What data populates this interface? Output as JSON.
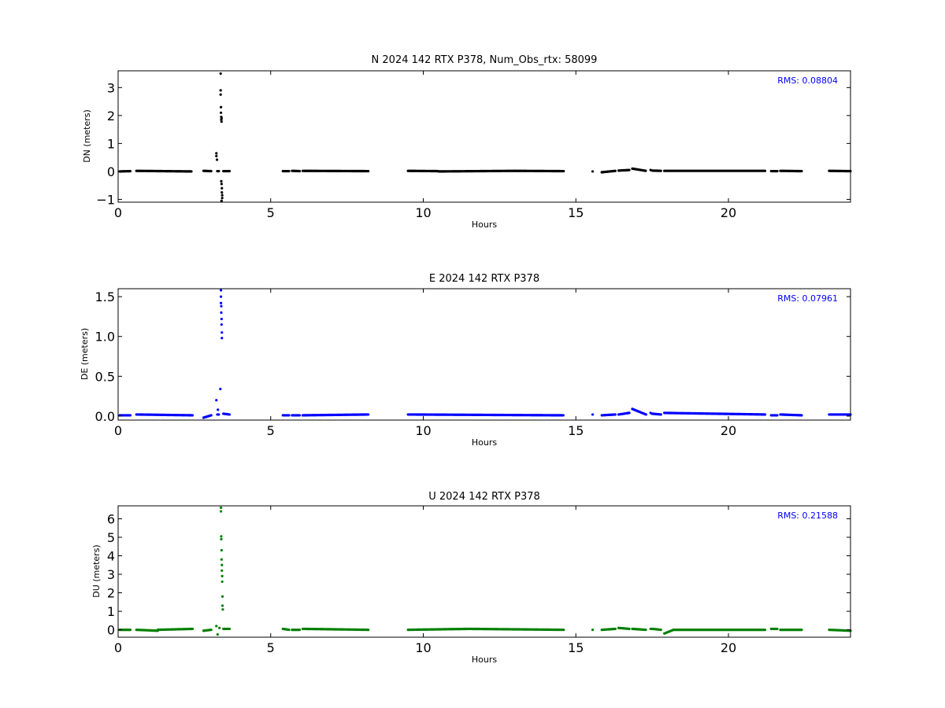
{
  "chart_data": [
    {
      "type": "scatter",
      "title": "N 2024 142 RTX  P378, Num_Obs_rtx: 58099",
      "xlabel": "Hours",
      "ylabel": "DN (meters)",
      "xlim": [
        0,
        24
      ],
      "ylim": [
        -1.1,
        3.6
      ],
      "xticks": [
        0,
        5,
        10,
        15,
        20
      ],
      "yticks": [
        -1,
        0,
        1,
        2,
        3
      ],
      "grid": false,
      "color": "#000000",
      "annotation": {
        "text": "RMS:  0.08804",
        "color": "#0000ff",
        "position": "top-right"
      },
      "segments": [
        {
          "x": [
            0.05,
            0.4
          ],
          "y": [
            0.0,
            0.01
          ]
        },
        {
          "x": [
            0.6,
            2.4
          ],
          "y": [
            0.02,
            0.0
          ]
        },
        {
          "x": [
            2.8,
            3.05
          ],
          "y": [
            0.02,
            0.01
          ]
        },
        {
          "x": [
            3.25,
            3.3
          ],
          "y": [
            0.01,
            0.01
          ]
        },
        {
          "x": [
            3.45,
            3.65
          ],
          "y": [
            0.01,
            0.01
          ]
        },
        {
          "x": [
            5.4,
            5.6
          ],
          "y": [
            0.01,
            0.01
          ]
        },
        {
          "x": [
            5.7,
            5.95
          ],
          "y": [
            0.02,
            0.01
          ]
        },
        {
          "x": [
            6.05,
            8.2
          ],
          "y": [
            0.02,
            0.01
          ]
        },
        {
          "x": [
            9.5,
            10.5
          ],
          "y": [
            0.02,
            0.01
          ]
        },
        {
          "x": [
            10.5,
            13.0
          ],
          "y": [
            0.0,
            0.02
          ]
        },
        {
          "x": [
            13.0,
            14.6
          ],
          "y": [
            0.02,
            0.01
          ]
        },
        {
          "x": [
            15.85,
            16.3
          ],
          "y": [
            -0.03,
            0.02
          ]
        },
        {
          "x": [
            16.4,
            16.75
          ],
          "y": [
            0.03,
            0.05
          ]
        },
        {
          "x": [
            16.85,
            17.3
          ],
          "y": [
            0.1,
            0.02
          ]
        },
        {
          "x": [
            17.5,
            17.8
          ],
          "y": [
            0.03,
            0.02
          ]
        },
        {
          "x": [
            17.9,
            21.2
          ],
          "y": [
            0.02,
            0.02
          ]
        },
        {
          "x": [
            21.4,
            21.6
          ],
          "y": [
            0.01,
            0.01
          ]
        },
        {
          "x": [
            21.7,
            22.4
          ],
          "y": [
            0.02,
            0.01
          ]
        },
        {
          "x": [
            23.3,
            24.0
          ],
          "y": [
            0.02,
            0.01
          ]
        }
      ],
      "points": [
        {
          "x": 15.55,
          "y": 0.0
        },
        {
          "x": 17.45,
          "y": 0.05
        },
        {
          "x": 3.22,
          "y": 0.65
        },
        {
          "x": 3.22,
          "y": 0.55
        },
        {
          "x": 3.24,
          "y": 0.42
        },
        {
          "x": 3.36,
          "y": 3.5
        },
        {
          "x": 3.36,
          "y": 2.9
        },
        {
          "x": 3.36,
          "y": 2.75
        },
        {
          "x": 3.37,
          "y": 2.3
        },
        {
          "x": 3.37,
          "y": 2.1
        },
        {
          "x": 3.38,
          "y": 1.95
        },
        {
          "x": 3.38,
          "y": 1.85
        },
        {
          "x": 3.39,
          "y": 1.78
        },
        {
          "x": 3.39,
          "y": 1.9
        },
        {
          "x": 3.38,
          "y": -0.35
        },
        {
          "x": 3.39,
          "y": -0.45
        },
        {
          "x": 3.4,
          "y": -0.6
        },
        {
          "x": 3.4,
          "y": -0.75
        },
        {
          "x": 3.41,
          "y": -0.85
        },
        {
          "x": 3.41,
          "y": -0.95
        },
        {
          "x": 3.39,
          "y": -1.05
        }
      ]
    },
    {
      "type": "scatter",
      "title": "E 2024 142 RTX  P378",
      "xlabel": "Hours",
      "ylabel": "DE (meters)",
      "xlim": [
        0,
        24
      ],
      "ylim": [
        -0.05,
        1.6
      ],
      "xticks": [
        0,
        5,
        10,
        15,
        20
      ],
      "yticks": [
        0.0,
        0.5,
        1.0,
        1.5
      ],
      "ytick_labels": [
        "0.0",
        "0.5",
        "1.0",
        "1.5"
      ],
      "grid": false,
      "color": "#0000ff",
      "annotation": {
        "text": "RMS:  0.07961",
        "color": "#0000ff",
        "position": "top-right"
      },
      "segments": [
        {
          "x": [
            0.05,
            0.4
          ],
          "y": [
            0.01,
            0.01
          ]
        },
        {
          "x": [
            0.6,
            2.45
          ],
          "y": [
            0.02,
            0.01
          ]
        },
        {
          "x": [
            2.8,
            3.05
          ],
          "y": [
            -0.02,
            0.01
          ]
        },
        {
          "x": [
            3.25,
            3.3
          ],
          "y": [
            0.02,
            0.02
          ]
        },
        {
          "x": [
            3.45,
            3.65
          ],
          "y": [
            0.03,
            0.02
          ]
        },
        {
          "x": [
            5.4,
            5.6
          ],
          "y": [
            0.01,
            0.01
          ]
        },
        {
          "x": [
            5.7,
            5.95
          ],
          "y": [
            0.01,
            0.01
          ]
        },
        {
          "x": [
            6.05,
            8.2
          ],
          "y": [
            0.01,
            0.02
          ]
        },
        {
          "x": [
            9.5,
            14.6
          ],
          "y": [
            0.02,
            0.01
          ]
        },
        {
          "x": [
            15.85,
            16.3
          ],
          "y": [
            0.01,
            0.02
          ]
        },
        {
          "x": [
            16.4,
            16.75
          ],
          "y": [
            0.02,
            0.04
          ]
        },
        {
          "x": [
            16.85,
            17.3
          ],
          "y": [
            0.09,
            0.02
          ]
        },
        {
          "x": [
            17.5,
            17.8
          ],
          "y": [
            0.03,
            0.02
          ]
        },
        {
          "x": [
            17.9,
            21.2
          ],
          "y": [
            0.04,
            0.02
          ]
        },
        {
          "x": [
            21.4,
            21.6
          ],
          "y": [
            0.01,
            0.01
          ]
        },
        {
          "x": [
            21.7,
            22.4
          ],
          "y": [
            0.02,
            0.01
          ]
        },
        {
          "x": [
            23.3,
            24.0
          ],
          "y": [
            0.02,
            0.02
          ]
        }
      ],
      "points": [
        {
          "x": 15.55,
          "y": 0.02
        },
        {
          "x": 17.45,
          "y": 0.04
        },
        {
          "x": 3.22,
          "y": 0.2
        },
        {
          "x": 3.27,
          "y": 0.08
        },
        {
          "x": 3.35,
          "y": 0.34
        },
        {
          "x": 3.37,
          "y": 1.58
        },
        {
          "x": 3.37,
          "y": 1.5
        },
        {
          "x": 3.37,
          "y": 1.42
        },
        {
          "x": 3.38,
          "y": 1.38
        },
        {
          "x": 3.38,
          "y": 1.3
        },
        {
          "x": 3.39,
          "y": 1.22
        },
        {
          "x": 3.39,
          "y": 1.15
        },
        {
          "x": 3.4,
          "y": 1.05
        },
        {
          "x": 3.4,
          "y": 0.98
        }
      ]
    },
    {
      "type": "scatter",
      "title": "U 2024 142 RTX  P378",
      "xlabel": "Hours",
      "ylabel": "DU (meters)",
      "xlim": [
        0,
        24
      ],
      "ylim": [
        -0.4,
        6.7
      ],
      "xticks": [
        0,
        5,
        10,
        15,
        20
      ],
      "yticks": [
        0,
        1,
        2,
        3,
        4,
        5,
        6
      ],
      "grid": false,
      "color": "#008000",
      "annotation": {
        "text": "RMS:  0.21588",
        "color": "#0000ff",
        "position": "top-right"
      },
      "segments": [
        {
          "x": [
            0.05,
            0.4
          ],
          "y": [
            0.0,
            0.0
          ]
        },
        {
          "x": [
            0.6,
            1.3
          ],
          "y": [
            0.0,
            -0.05
          ]
        },
        {
          "x": [
            1.3,
            2.45
          ],
          "y": [
            0.0,
            0.05
          ]
        },
        {
          "x": [
            2.8,
            3.05
          ],
          "y": [
            -0.05,
            0.0
          ]
        },
        {
          "x": [
            3.45,
            3.65
          ],
          "y": [
            0.05,
            0.05
          ]
        },
        {
          "x": [
            5.4,
            5.6
          ],
          "y": [
            0.05,
            0.0
          ]
        },
        {
          "x": [
            5.7,
            5.95
          ],
          "y": [
            0.0,
            0.0
          ]
        },
        {
          "x": [
            6.05,
            8.2
          ],
          "y": [
            0.05,
            0.0
          ]
        },
        {
          "x": [
            9.5,
            11.5
          ],
          "y": [
            0.0,
            0.05
          ]
        },
        {
          "x": [
            11.5,
            14.6
          ],
          "y": [
            0.05,
            0.0
          ]
        },
        {
          "x": [
            15.85,
            16.3
          ],
          "y": [
            0.0,
            0.05
          ]
        },
        {
          "x": [
            16.4,
            16.75
          ],
          "y": [
            0.1,
            0.05
          ]
        },
        {
          "x": [
            16.85,
            17.3
          ],
          "y": [
            0.05,
            0.0
          ]
        },
        {
          "x": [
            17.5,
            17.8
          ],
          "y": [
            0.05,
            0.0
          ]
        },
        {
          "x": [
            17.9,
            18.2
          ],
          "y": [
            -0.2,
            0.0
          ]
        },
        {
          "x": [
            18.2,
            21.2
          ],
          "y": [
            0.0,
            0.0
          ]
        },
        {
          "x": [
            21.4,
            21.6
          ],
          "y": [
            0.05,
            0.05
          ]
        },
        {
          "x": [
            21.7,
            22.4
          ],
          "y": [
            0.0,
            0.0
          ]
        },
        {
          "x": [
            23.3,
            24.0
          ],
          "y": [
            0.0,
            -0.05
          ]
        }
      ],
      "points": [
        {
          "x": 15.55,
          "y": 0.0
        },
        {
          "x": 17.45,
          "y": 0.05
        },
        {
          "x": 3.22,
          "y": 0.2
        },
        {
          "x": 3.26,
          "y": -0.25
        },
        {
          "x": 3.32,
          "y": 0.1
        },
        {
          "x": 3.37,
          "y": 6.6
        },
        {
          "x": 3.37,
          "y": 6.4
        },
        {
          "x": 3.38,
          "y": 5.05
        },
        {
          "x": 3.38,
          "y": 4.9
        },
        {
          "x": 3.39,
          "y": 4.3
        },
        {
          "x": 3.39,
          "y": 3.8
        },
        {
          "x": 3.4,
          "y": 3.5
        },
        {
          "x": 3.4,
          "y": 3.2
        },
        {
          "x": 3.41,
          "y": 2.9
        },
        {
          "x": 3.41,
          "y": 2.6
        },
        {
          "x": 3.42,
          "y": 1.8
        },
        {
          "x": 3.42,
          "y": 1.3
        },
        {
          "x": 3.43,
          "y": 1.1
        }
      ]
    }
  ]
}
